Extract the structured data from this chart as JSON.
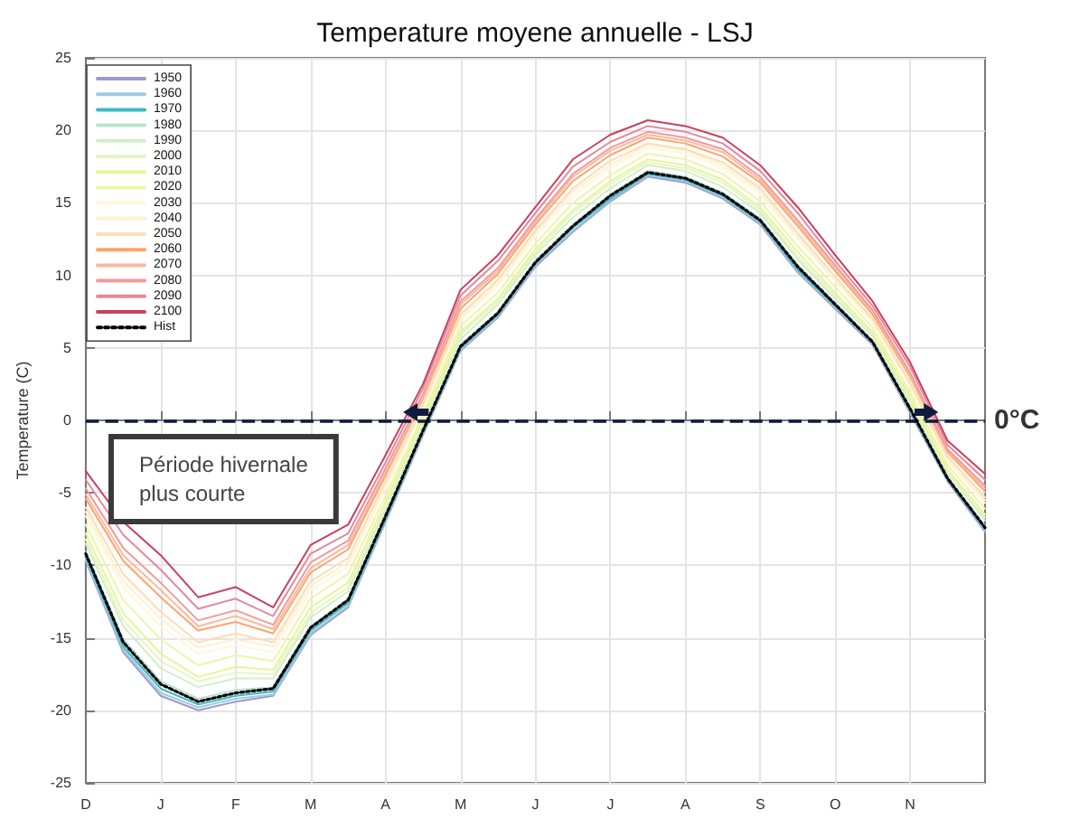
{
  "chart_data": {
    "type": "line",
    "title": "Temperature moyene annuelle - LSJ",
    "ylabel": "Temperature (C)",
    "categories": [
      "D",
      null,
      "J",
      null,
      "F",
      null,
      "M",
      null,
      "A",
      null,
      "M",
      null,
      "J",
      null,
      "J",
      null,
      "A",
      null,
      "S",
      null,
      "O",
      null,
      "N",
      null,
      null
    ],
    "ylim": [
      -25,
      25
    ],
    "yticks": [
      -25,
      -20,
      -15,
      -10,
      -5,
      0,
      5,
      10,
      15,
      20,
      25
    ],
    "grid": true,
    "legend": "top left",
    "series": [
      {
        "name": "1950",
        "color": "#9e9ac8",
        "values": [
          -9.7,
          -16,
          -19,
          -20,
          -19.4,
          -19,
          -14.8,
          -12.9,
          -7,
          -1,
          4.8,
          7.1,
          10.6,
          13,
          15.1,
          16.8,
          16.4,
          15.3,
          13.5,
          10.2,
          7.7,
          5.2,
          0.5,
          -4.2,
          -7.7
        ]
      },
      {
        "name": "1960",
        "color": "#9ecae1",
        "values": [
          -9.6,
          -15.8,
          -18.8,
          -19.8,
          -19.2,
          -18.9,
          -14.7,
          -12.8,
          -6.9,
          -0.9,
          4.9,
          7.2,
          10.7,
          13.1,
          15.2,
          16.9,
          16.5,
          15.4,
          13.6,
          10.3,
          7.8,
          5.3,
          0.6,
          -4.1,
          -7.6
        ]
      },
      {
        "name": "1970",
        "color": "#41b6c4",
        "values": [
          -9.4,
          -15.6,
          -18.5,
          -19.6,
          -19,
          -18.7,
          -14.5,
          -12.6,
          -6.8,
          -0.8,
          5,
          7.3,
          10.8,
          13.3,
          15.3,
          17,
          16.6,
          15.5,
          13.7,
          10.4,
          7.9,
          5.4,
          0.7,
          -4.1,
          -7.5
        ]
      },
      {
        "name": "1980",
        "color": "#b8e3cf",
        "values": [
          -9.1,
          -15.1,
          -18,
          -19.2,
          -18.6,
          -18.4,
          -14.2,
          -12.3,
          -6.5,
          -0.7,
          5.2,
          7.5,
          11,
          13.5,
          15.6,
          17.2,
          16.8,
          15.7,
          13.9,
          10.7,
          8.1,
          5.5,
          0.9,
          -3.9,
          -7.3
        ]
      },
      {
        "name": "1990",
        "color": "#d3eec8",
        "values": [
          -8.5,
          -14.2,
          -17.1,
          -18.4,
          -17.8,
          -17.8,
          -13.6,
          -11.8,
          -6.1,
          -0.3,
          5.6,
          8,
          11.4,
          14,
          16,
          17.6,
          17.2,
          16.1,
          14.3,
          11.1,
          8.4,
          5.8,
          1.2,
          -3.6,
          -6.9
        ]
      },
      {
        "name": "2000",
        "color": "#e8f4c4",
        "values": [
          -8.2,
          -13.8,
          -16.6,
          -18,
          -17.4,
          -17.5,
          -13.3,
          -11.5,
          -5.9,
          -0.1,
          5.9,
          8.2,
          11.6,
          14.3,
          16.3,
          17.8,
          17.4,
          16.4,
          14.5,
          11.3,
          8.6,
          6,
          1.4,
          -3.5,
          -6.7
        ]
      },
      {
        "name": "2010",
        "color": "#e6f598",
        "values": [
          -7.8,
          -13.3,
          -16.1,
          -17.7,
          -17,
          -17.2,
          -12.9,
          -11.2,
          -5.6,
          0.1,
          6.1,
          8.4,
          11.8,
          14.5,
          16.5,
          18,
          17.6,
          16.6,
          14.7,
          11.6,
          8.8,
          6.1,
          1.6,
          -3.4,
          -6.5
        ]
      },
      {
        "name": "2020",
        "color": "#eef5a8",
        "values": [
          -7.2,
          -12.4,
          -15.1,
          -16.9,
          -16.2,
          -16.6,
          -12.3,
          -10.6,
          -5.2,
          0.4,
          6.5,
          8.8,
          12.2,
          15,
          16.9,
          18.4,
          18,
          17,
          15.1,
          12,
          9.2,
          6.4,
          1.9,
          -3.1,
          -6.1
        ]
      },
      {
        "name": "2030",
        "color": "#fdf8dc",
        "values": [
          -6.6,
          -11.5,
          -14.2,
          -16.1,
          -15.5,
          -16,
          -11.7,
          -10.1,
          -4.7,
          0.8,
          6.9,
          9.3,
          12.7,
          15.5,
          17.4,
          18.8,
          18.4,
          17.4,
          15.6,
          12.5,
          9.6,
          6.7,
          2.3,
          -2.8,
          -5.7
        ]
      },
      {
        "name": "2040",
        "color": "#fef0d0",
        "values": [
          -6.3,
          -11.1,
          -13.7,
          -15.7,
          -15.1,
          -15.6,
          -11.4,
          -9.8,
          -4.5,
          0.9,
          7.1,
          9.5,
          12.9,
          15.8,
          17.6,
          19,
          18.6,
          17.6,
          15.8,
          12.7,
          9.7,
          6.9,
          2.4,
          -2.7,
          -5.5
        ]
      },
      {
        "name": "2050",
        "color": "#fedcb4",
        "values": [
          -6,
          -10.6,
          -13.2,
          -15.3,
          -14.7,
          -15.3,
          -11.1,
          -9.5,
          -4.2,
          1.1,
          7.3,
          9.7,
          13.1,
          16,
          17.9,
          19.1,
          18.7,
          17.8,
          16,
          12.9,
          9.9,
          7,
          2.6,
          -2.5,
          -5.3
        ]
      },
      {
        "name": "2060",
        "color": "#fca56a",
        "values": [
          -5.4,
          -9.7,
          -12.2,
          -14.5,
          -13.9,
          -14.7,
          -10.5,
          -8.9,
          -3.8,
          1.5,
          7.7,
          10.1,
          13.5,
          16.5,
          18.3,
          19.5,
          19.1,
          18.2,
          16.4,
          13.4,
          10.3,
          7.3,
          3,
          -2.2,
          -4.9
        ]
      },
      {
        "name": "2070",
        "color": "#fbb89e",
        "values": [
          -5.1,
          -9.3,
          -11.7,
          -14.2,
          -13.5,
          -14.4,
          -10.2,
          -8.6,
          -3.6,
          1.6,
          8,
          10.3,
          13.7,
          16.8,
          18.6,
          19.7,
          19.3,
          18.5,
          16.6,
          13.6,
          10.5,
          7.5,
          3.1,
          -2.1,
          -4.7
        ]
      },
      {
        "name": "2080",
        "color": "#f29a9a",
        "values": [
          -4.7,
          -8.8,
          -11.2,
          -13.8,
          -13.1,
          -14.1,
          -9.8,
          -8.3,
          -3.3,
          1.8,
          8.2,
          10.5,
          13.9,
          17,
          18.8,
          19.9,
          19.5,
          18.7,
          16.8,
          13.8,
          10.7,
          7.6,
          3.3,
          -2,
          -4.5
        ]
      },
      {
        "name": "2090",
        "color": "#e3899c",
        "values": [
          -4.1,
          -7.9,
          -10.3,
          -13,
          -12.3,
          -13.5,
          -9.2,
          -7.8,
          -2.9,
          2.2,
          8.6,
          11,
          14.3,
          17.5,
          19.2,
          20.3,
          19.9,
          19.1,
          17.2,
          14.3,
          11,
          7.9,
          3.7,
          -1.7,
          -4.1
        ]
      },
      {
        "name": "2100",
        "color": "#c8405e",
        "values": [
          -3.5,
          -7,
          -9.3,
          -12.2,
          -11.5,
          -12.9,
          -8.6,
          -7.2,
          -2.4,
          2.5,
          9,
          11.4,
          14.7,
          18,
          19.7,
          20.7,
          20.3,
          19.5,
          17.6,
          14.7,
          11.4,
          8.2,
          4,
          -1.4,
          -3.7
        ]
      },
      {
        "name": "Hist",
        "color": "#000000",
        "line_style": "dotted",
        "values": [
          -9.2,
          -15.3,
          -18.2,
          -19.4,
          -18.8,
          -18.5,
          -14.3,
          -12.4,
          -6.6,
          -0.7,
          5.1,
          7.4,
          10.9,
          13.4,
          15.5,
          17.1,
          16.7,
          15.6,
          13.8,
          10.6,
          8,
          5.4,
          0.8,
          -4,
          -7.4
        ]
      }
    ],
    "ref_lines": [
      {
        "axis": "y",
        "value": 0,
        "label": "0°C",
        "color": "#0d1b3e",
        "line_style": "dashed"
      }
    ],
    "annotations": [
      "Période hivernale\nplus courte"
    ]
  }
}
